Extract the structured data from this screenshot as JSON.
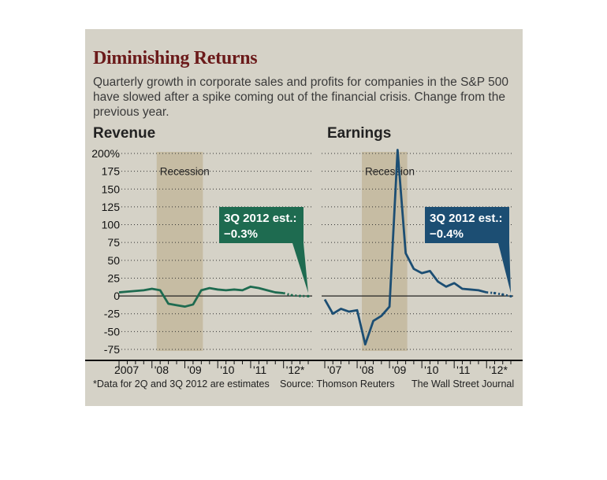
{
  "header": {
    "title": "Diminishing Returns",
    "subtitle": "Quarterly growth in corporate sales and profits for companies in the S&P 500 have slowed after a spike coming out of the financial crisis. Change from the previous year."
  },
  "footer": {
    "note": "*Data for 2Q and 3Q 2012 are estimates",
    "source": "Source: Thomson Reuters",
    "credit": "The Wall Street Journal"
  },
  "colors": {
    "revenue": "#1e6b50",
    "earnings": "#1c4e73",
    "recession": "#c0b497",
    "title": "#6b1a1a"
  },
  "chart_data": [
    {
      "type": "line",
      "title": "Revenue",
      "ylim": [
        -75,
        200
      ],
      "yticks": [
        "200%",
        "175",
        "150",
        "125",
        "100",
        "75",
        "50",
        "25",
        "0",
        "-25",
        "-50",
        "-75"
      ],
      "xticks": [
        "2007",
        "'08",
        "'09",
        "'10",
        "'11",
        "'12*"
      ],
      "shade_label": "Recession",
      "shade": [
        2008.0,
        2009.5
      ],
      "grid": true,
      "x": [
        2007.0,
        2007.25,
        2007.5,
        2007.75,
        2008.0,
        2008.25,
        2008.5,
        2008.75,
        2009.0,
        2009.25,
        2009.5,
        2009.75,
        2010.0,
        2010.25,
        2010.5,
        2010.75,
        2011.0,
        2011.25,
        2011.5,
        2011.75,
        2012.0,
        2012.25,
        2012.5,
        2012.75
      ],
      "values": [
        5,
        6,
        7,
        8,
        10,
        8,
        -11,
        -13,
        -15,
        -12,
        8,
        11,
        9,
        8,
        9,
        8,
        13,
        11,
        8,
        5,
        4,
        1,
        0,
        -0.3
      ],
      "estimated_from_index": 21,
      "annotation": [
        "3Q 2012 est.:",
        "−0.3%"
      ]
    },
    {
      "type": "line",
      "title": "Earnings",
      "ylim": [
        -75,
        200
      ],
      "xticks": [
        "'07",
        "'08",
        "'09",
        "'10",
        "'11",
        "'12*"
      ],
      "shade_label": "Recession",
      "shade": [
        2008.0,
        2009.5
      ],
      "grid": true,
      "x": [
        2007.0,
        2007.25,
        2007.5,
        2007.75,
        2008.0,
        2008.25,
        2008.5,
        2008.75,
        2009.0,
        2009.25,
        2009.5,
        2009.75,
        2010.0,
        2010.25,
        2010.5,
        2010.75,
        2011.0,
        2011.25,
        2011.5,
        2011.75,
        2012.0,
        2012.25,
        2012.5,
        2012.75
      ],
      "values": [
        -5,
        -25,
        -18,
        -22,
        -20,
        -68,
        -35,
        -28,
        -15,
        205,
        60,
        38,
        32,
        35,
        20,
        13,
        18,
        10,
        9,
        8,
        5,
        4,
        2,
        -0.4
      ],
      "estimated_from_index": 21,
      "annotation": [
        "3Q 2012 est.:",
        "−0.4%"
      ]
    }
  ]
}
